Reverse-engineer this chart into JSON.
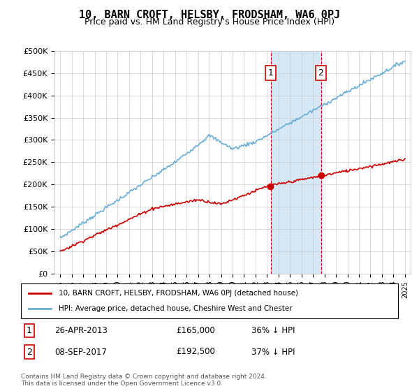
{
  "title": "10, BARN CROFT, HELSBY, FRODSHAM, WA6 0PJ",
  "subtitle": "Price paid vs. HM Land Registry's House Price Index (HPI)",
  "x_start_year": 1995,
  "x_end_year": 2025,
  "y_min": 0,
  "y_max": 500000,
  "y_ticks": [
    0,
    50000,
    100000,
    150000,
    200000,
    250000,
    300000,
    350000,
    400000,
    450000,
    500000
  ],
  "y_tick_labels": [
    "£0",
    "£50K",
    "£100K",
    "£150K",
    "£200K",
    "£250K",
    "£300K",
    "£350K",
    "£400K",
    "£450K",
    "£500K"
  ],
  "hpi_color": "#6baed6",
  "price_color": "#cc0000",
  "sale1_year": 2013.32,
  "sale1_price": 165000,
  "sale1_label": "1",
  "sale1_date": "26-APR-2013",
  "sale1_hpi_pct": "36% ↓ HPI",
  "sale2_year": 2017.69,
  "sale2_price": 192500,
  "sale2_label": "2",
  "sale2_date": "08-SEP-2017",
  "sale2_hpi_pct": "37% ↓ HPI",
  "highlight_color": "#d6e8f5",
  "highlight_border": "#cc0000",
  "legend_line1": "10, BARN CROFT, HELSBY, FRODSHAM, WA6 0PJ (detached house)",
  "legend_line2": "HPI: Average price, detached house, Cheshire West and Chester",
  "footnote": "Contains HM Land Registry data © Crown copyright and database right 2024.\nThis data is licensed under the Open Government Licence v3.0."
}
